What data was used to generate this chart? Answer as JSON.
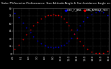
{
  "title": "Solar PV/Inverter Performance  Sun Altitude Angle & Sun Incidence Angle on PV Panels",
  "background_color": "#000000",
  "plot_bg_color": "#000000",
  "grid_color": "#444444",
  "ylim": [
    0,
    90
  ],
  "yticks": [
    0,
    15,
    30,
    45,
    60,
    75,
    90
  ],
  "ytick_labels": [
    "0",
    "15",
    "30",
    "45",
    "60",
    "75",
    "90"
  ],
  "xlim": [
    0,
    144
  ],
  "xtick_positions": [
    0,
    12,
    24,
    36,
    48,
    60,
    72,
    84,
    96,
    108,
    120,
    132,
    144
  ],
  "xtick_labels": [
    "4:5",
    "5:1",
    "6:0",
    "7:0",
    "8:0",
    "9:0",
    "10:0",
    "11:0",
    "12:0",
    "13:0",
    "14:0",
    "15:0",
    "16:0"
  ],
  "blue_x": [
    2,
    8,
    14,
    20,
    26,
    30,
    36,
    42,
    48,
    52,
    56,
    60,
    64,
    68,
    72,
    76,
    80,
    84,
    88,
    92,
    96,
    100,
    106,
    112,
    118,
    124,
    130,
    136,
    142
  ],
  "blue_y": [
    80,
    72,
    62,
    52,
    42,
    34,
    26,
    20,
    16,
    14,
    13,
    12,
    13,
    14,
    16,
    18,
    22,
    26,
    32,
    40,
    48,
    56,
    64,
    72,
    78,
    82,
    84,
    82,
    76
  ],
  "red_x": [
    2,
    8,
    14,
    20,
    26,
    30,
    36,
    42,
    48,
    52,
    56,
    60,
    64,
    68,
    72,
    76,
    80,
    84,
    88,
    92,
    96,
    100,
    106,
    112,
    118,
    124,
    130,
    136,
    142
  ],
  "red_y": [
    10,
    18,
    28,
    38,
    48,
    56,
    63,
    70,
    74,
    76,
    77,
    78,
    77,
    76,
    74,
    70,
    63,
    56,
    48,
    40,
    32,
    24,
    16,
    10,
    4,
    2,
    1,
    2,
    6
  ],
  "dot_size": 1.5,
  "blue_color": "#0000ff",
  "red_color": "#ff0000",
  "title_fontsize": 3.0,
  "tick_fontsize": 2.5,
  "legend_fontsize": 2.5,
  "legend_blue_label": "HOC_7_JEN1",
  "legend_red_label": "SMA_APPEAR_7EO"
}
